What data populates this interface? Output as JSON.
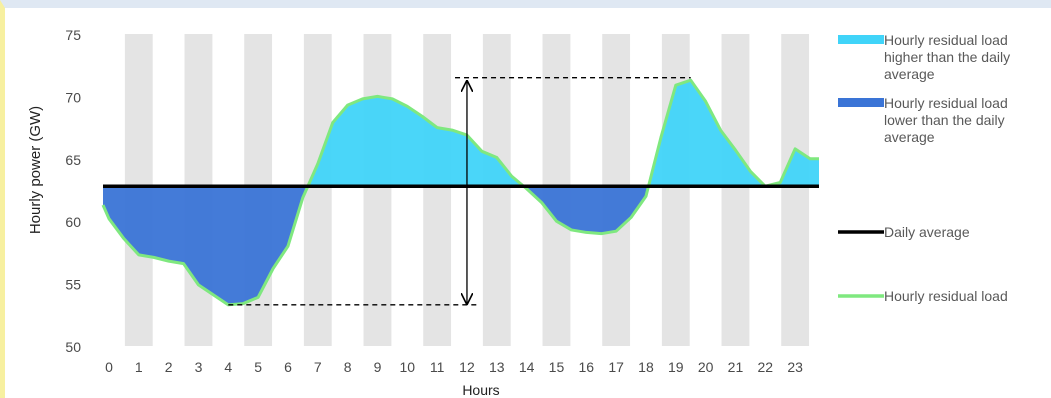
{
  "chart_data": {
    "type": "area",
    "xlabel": "Hours",
    "ylabel": "Hourly power (GW)",
    "ylim": [
      50,
      75
    ],
    "xlim": [
      -0.2,
      23.8
    ],
    "yticks": [
      50,
      55,
      60,
      65,
      70,
      75
    ],
    "xticks": [
      0,
      1,
      2,
      3,
      4,
      5,
      6,
      7,
      8,
      9,
      10,
      11,
      12,
      13,
      14,
      15,
      16,
      17,
      18,
      19,
      20,
      21,
      22,
      23
    ],
    "daily_average": 62.8,
    "series": [
      {
        "name": "Hourly residual load",
        "color": "#7fe87f",
        "x": [
          -0.2,
          0,
          0.5,
          1,
          1.5,
          2,
          2.5,
          3,
          3.5,
          4,
          4.5,
          5,
          5.5,
          6,
          6.5,
          7,
          7.5,
          8,
          8.5,
          9,
          9.5,
          10,
          10.5,
          11,
          11.5,
          12,
          12.5,
          13,
          13.5,
          14,
          14.5,
          15,
          15.5,
          16,
          16.5,
          17,
          17.5,
          18,
          18.5,
          19,
          19.5,
          20,
          20.5,
          21,
          21.5,
          22,
          22.5,
          23,
          23.5,
          23.8
        ],
        "y": [
          61.3,
          60.2,
          58.6,
          57.3,
          57.1,
          56.8,
          56.6,
          54.9,
          54.1,
          53.3,
          53.4,
          53.9,
          56.2,
          58.0,
          61.9,
          64.6,
          67.9,
          69.3,
          69.8,
          70.0,
          69.8,
          69.2,
          68.4,
          67.5,
          67.3,
          66.9,
          65.6,
          65.1,
          63.6,
          62.6,
          61.5,
          60.0,
          59.3,
          59.1,
          59.0,
          59.2,
          60.3,
          62.0,
          66.7,
          70.9,
          71.3,
          69.6,
          67.3,
          65.7,
          64.0,
          62.8,
          63.1,
          65.8,
          65.0,
          65.0
        ]
      }
    ],
    "legend": [
      {
        "label": "Hourly residual load higher than the daily average",
        "lines": [
          "Hourly residual load",
          "higher than the daily",
          "average"
        ],
        "color": "#40d4f9",
        "kind": "patch"
      },
      {
        "label": "Hourly residual load lower than the daily average",
        "lines": [
          "Hourly residual load",
          "lower than the daily",
          "average"
        ],
        "color": "#3a74d6",
        "kind": "patch"
      },
      {
        "label": "Daily average",
        "lines": [
          "Daily average"
        ],
        "color": "#000000",
        "kind": "line"
      },
      {
        "label": "Hourly residual load",
        "lines": [
          "Hourly residual load"
        ],
        "color": "#7fe87f",
        "kind": "line"
      }
    ],
    "annotations": [
      {
        "type": "double-arrow",
        "x": 12,
        "y_from": 53.3,
        "y_to": 71.3
      },
      {
        "type": "dashed-line",
        "x_from": 4,
        "x_to": 12.4,
        "y": 53.3
      },
      {
        "type": "dashed-line",
        "x_from": 11.6,
        "x_to": 19.5,
        "y": 71.5
      }
    ],
    "background_bands": "light grey vertical bands at every odd hour",
    "colors": {
      "above": "#40d4f9",
      "below": "#3a74d6",
      "band": "#e4e4e4",
      "average": "#000000",
      "curve": "#7fe87f"
    }
  }
}
